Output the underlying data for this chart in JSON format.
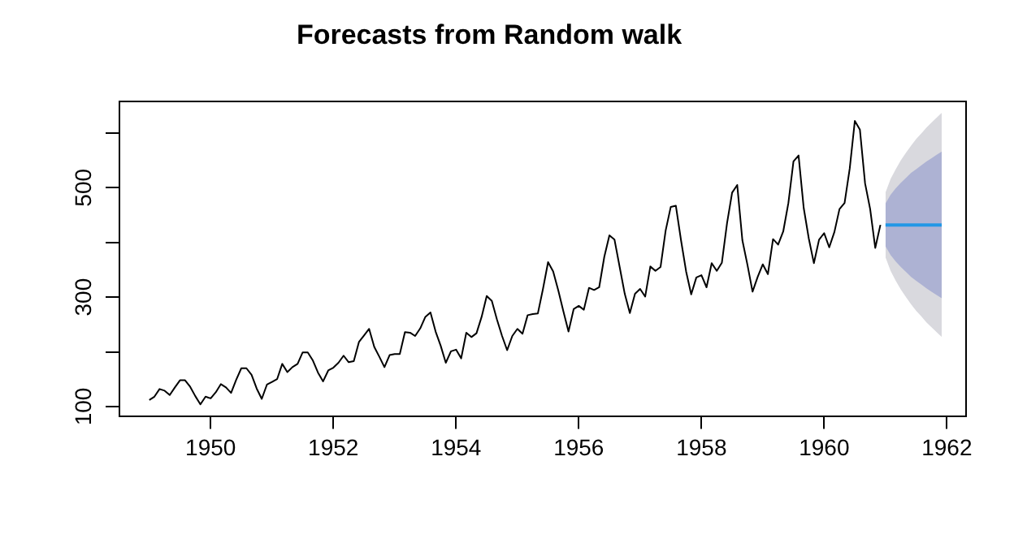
{
  "chart_data": {
    "type": "line",
    "title": "Forecasts from Random walk",
    "xlim": [
      1948.5,
      1962.3
    ],
    "xticks": [
      1950,
      1952,
      1954,
      1956,
      1958,
      1960,
      1962
    ],
    "ylim": [
      83,
      658
    ],
    "yticks": [
      100,
      {
        "value": 200,
        "label": null
      },
      300,
      {
        "value": 400,
        "label": null
      },
      500,
      {
        "value": 600,
        "label": null
      }
    ],
    "grid": false,
    "legend": false,
    "marker": "none",
    "line_style": "solid",
    "series": [
      {
        "type": "area",
        "color": "#d9d9de",
        "x": [
          1961,
          1961.083,
          1961.167,
          1961.25,
          1961.333,
          1961.417,
          1961.5,
          1961.583,
          1961.667,
          1961.75,
          1961.833,
          1961.917
        ],
        "values": [
          null,
          null,
          null,
          null,
          null,
          null,
          null,
          null,
          null,
          null,
          null,
          null
        ],
        "lower": [
          373,
          348,
          330,
          314,
          300,
          287,
          275,
          265,
          254,
          245,
          236,
          227
        ],
        "upper": [
          491,
          516,
          534,
          550,
          564,
          577,
          589,
          599,
          610,
          619,
          628,
          637
        ]
      },
      {
        "type": "area",
        "color": "#adb2d3",
        "x": [
          1961,
          1961.083,
          1961.167,
          1961.25,
          1961.333,
          1961.417,
          1961.5,
          1961.583,
          1961.667,
          1961.75,
          1961.833,
          1961.917
        ],
        "values": [
          null,
          null,
          null,
          null,
          null,
          null,
          null,
          null,
          null,
          null,
          null,
          null
        ],
        "lower": [
          393,
          377,
          365,
          355,
          346,
          337,
          330,
          323,
          316,
          310,
          304,
          298
        ],
        "upper": [
          471,
          487,
          499,
          509,
          518,
          527,
          534,
          541,
          548,
          554,
          560,
          566
        ]
      },
      {
        "type": "line",
        "color": "#000000",
        "x": [
          1949,
          1949.083,
          1949.167,
          1949.25,
          1949.333,
          1949.417,
          1949.5,
          1949.583,
          1949.667,
          1949.75,
          1949.833,
          1949.917,
          1950,
          1950.083,
          1950.167,
          1950.25,
          1950.333,
          1950.417,
          1950.5,
          1950.583,
          1950.667,
          1950.75,
          1950.833,
          1950.917,
          1951,
          1951.083,
          1951.167,
          1951.25,
          1951.333,
          1951.417,
          1951.5,
          1951.583,
          1951.667,
          1951.75,
          1951.833,
          1951.917,
          1952,
          1952.083,
          1952.167,
          1952.25,
          1952.333,
          1952.417,
          1952.5,
          1952.583,
          1952.667,
          1952.75,
          1952.833,
          1952.917,
          1953,
          1953.083,
          1953.167,
          1953.25,
          1953.333,
          1953.417,
          1953.5,
          1953.583,
          1953.667,
          1953.75,
          1953.833,
          1953.917,
          1954,
          1954.083,
          1954.167,
          1954.25,
          1954.333,
          1954.417,
          1954.5,
          1954.583,
          1954.667,
          1954.75,
          1954.833,
          1954.917,
          1955,
          1955.083,
          1955.167,
          1955.25,
          1955.333,
          1955.417,
          1955.5,
          1955.583,
          1955.667,
          1955.75,
          1955.833,
          1955.917,
          1956,
          1956.083,
          1956.167,
          1956.25,
          1956.333,
          1956.417,
          1956.5,
          1956.583,
          1956.667,
          1956.75,
          1956.833,
          1956.917,
          1957,
          1957.083,
          1957.167,
          1957.25,
          1957.333,
          1957.417,
          1957.5,
          1957.583,
          1957.667,
          1957.75,
          1957.833,
          1957.917,
          1958,
          1958.083,
          1958.167,
          1958.25,
          1958.333,
          1958.417,
          1958.5,
          1958.583,
          1958.667,
          1958.75,
          1958.833,
          1958.917,
          1959,
          1959.083,
          1959.167,
          1959.25,
          1959.333,
          1959.417,
          1959.5,
          1959.583,
          1959.667,
          1959.75,
          1959.833,
          1959.917,
          1960,
          1960.083,
          1960.167,
          1960.25,
          1960.333,
          1960.417,
          1960.5,
          1960.583,
          1960.667,
          1960.75,
          1960.833,
          1960.917
        ],
        "values": [
          112,
          118,
          132,
          129,
          121,
          135,
          148,
          148,
          136,
          119,
          104,
          118,
          115,
          126,
          141,
          135,
          125,
          149,
          170,
          170,
          158,
          133,
          114,
          140,
          145,
          150,
          178,
          163,
          172,
          178,
          199,
          199,
          184,
          162,
          146,
          166,
          171,
          180,
          193,
          181,
          183,
          218,
          230,
          242,
          209,
          191,
          172,
          194,
          196,
          196,
          236,
          235,
          229,
          243,
          264,
          272,
          237,
          211,
          180,
          201,
          204,
          188,
          235,
          227,
          234,
          264,
          302,
          293,
          259,
          229,
          203,
          229,
          242,
          233,
          267,
          269,
          270,
          315,
          364,
          347,
          312,
          274,
          237,
          278,
          284,
          277,
          317,
          313,
          318,
          374,
          413,
          405,
          355,
          306,
          271,
          306,
          315,
          301,
          356,
          348,
          355,
          422,
          465,
          467,
          404,
          347,
          305,
          336,
          340,
          318,
          362,
          348,
          363,
          435,
          491,
          505,
          404,
          359,
          310,
          337,
          360,
          342,
          406,
          396,
          420,
          472,
          548,
          559,
          463,
          407,
          362,
          405,
          417,
          391,
          419,
          461,
          472,
          535,
          622,
          606,
          508,
          461,
          390,
          432
        ]
      },
      {
        "type": "line",
        "color": "#2297e6",
        "x": [
          1961,
          1961.083,
          1961.167,
          1961.25,
          1961.333,
          1961.417,
          1961.5,
          1961.583,
          1961.667,
          1961.75,
          1961.833,
          1961.917
        ],
        "values": [
          432,
          432,
          432,
          432,
          432,
          432,
          432,
          432,
          432,
          432,
          432,
          432
        ]
      }
    ]
  }
}
